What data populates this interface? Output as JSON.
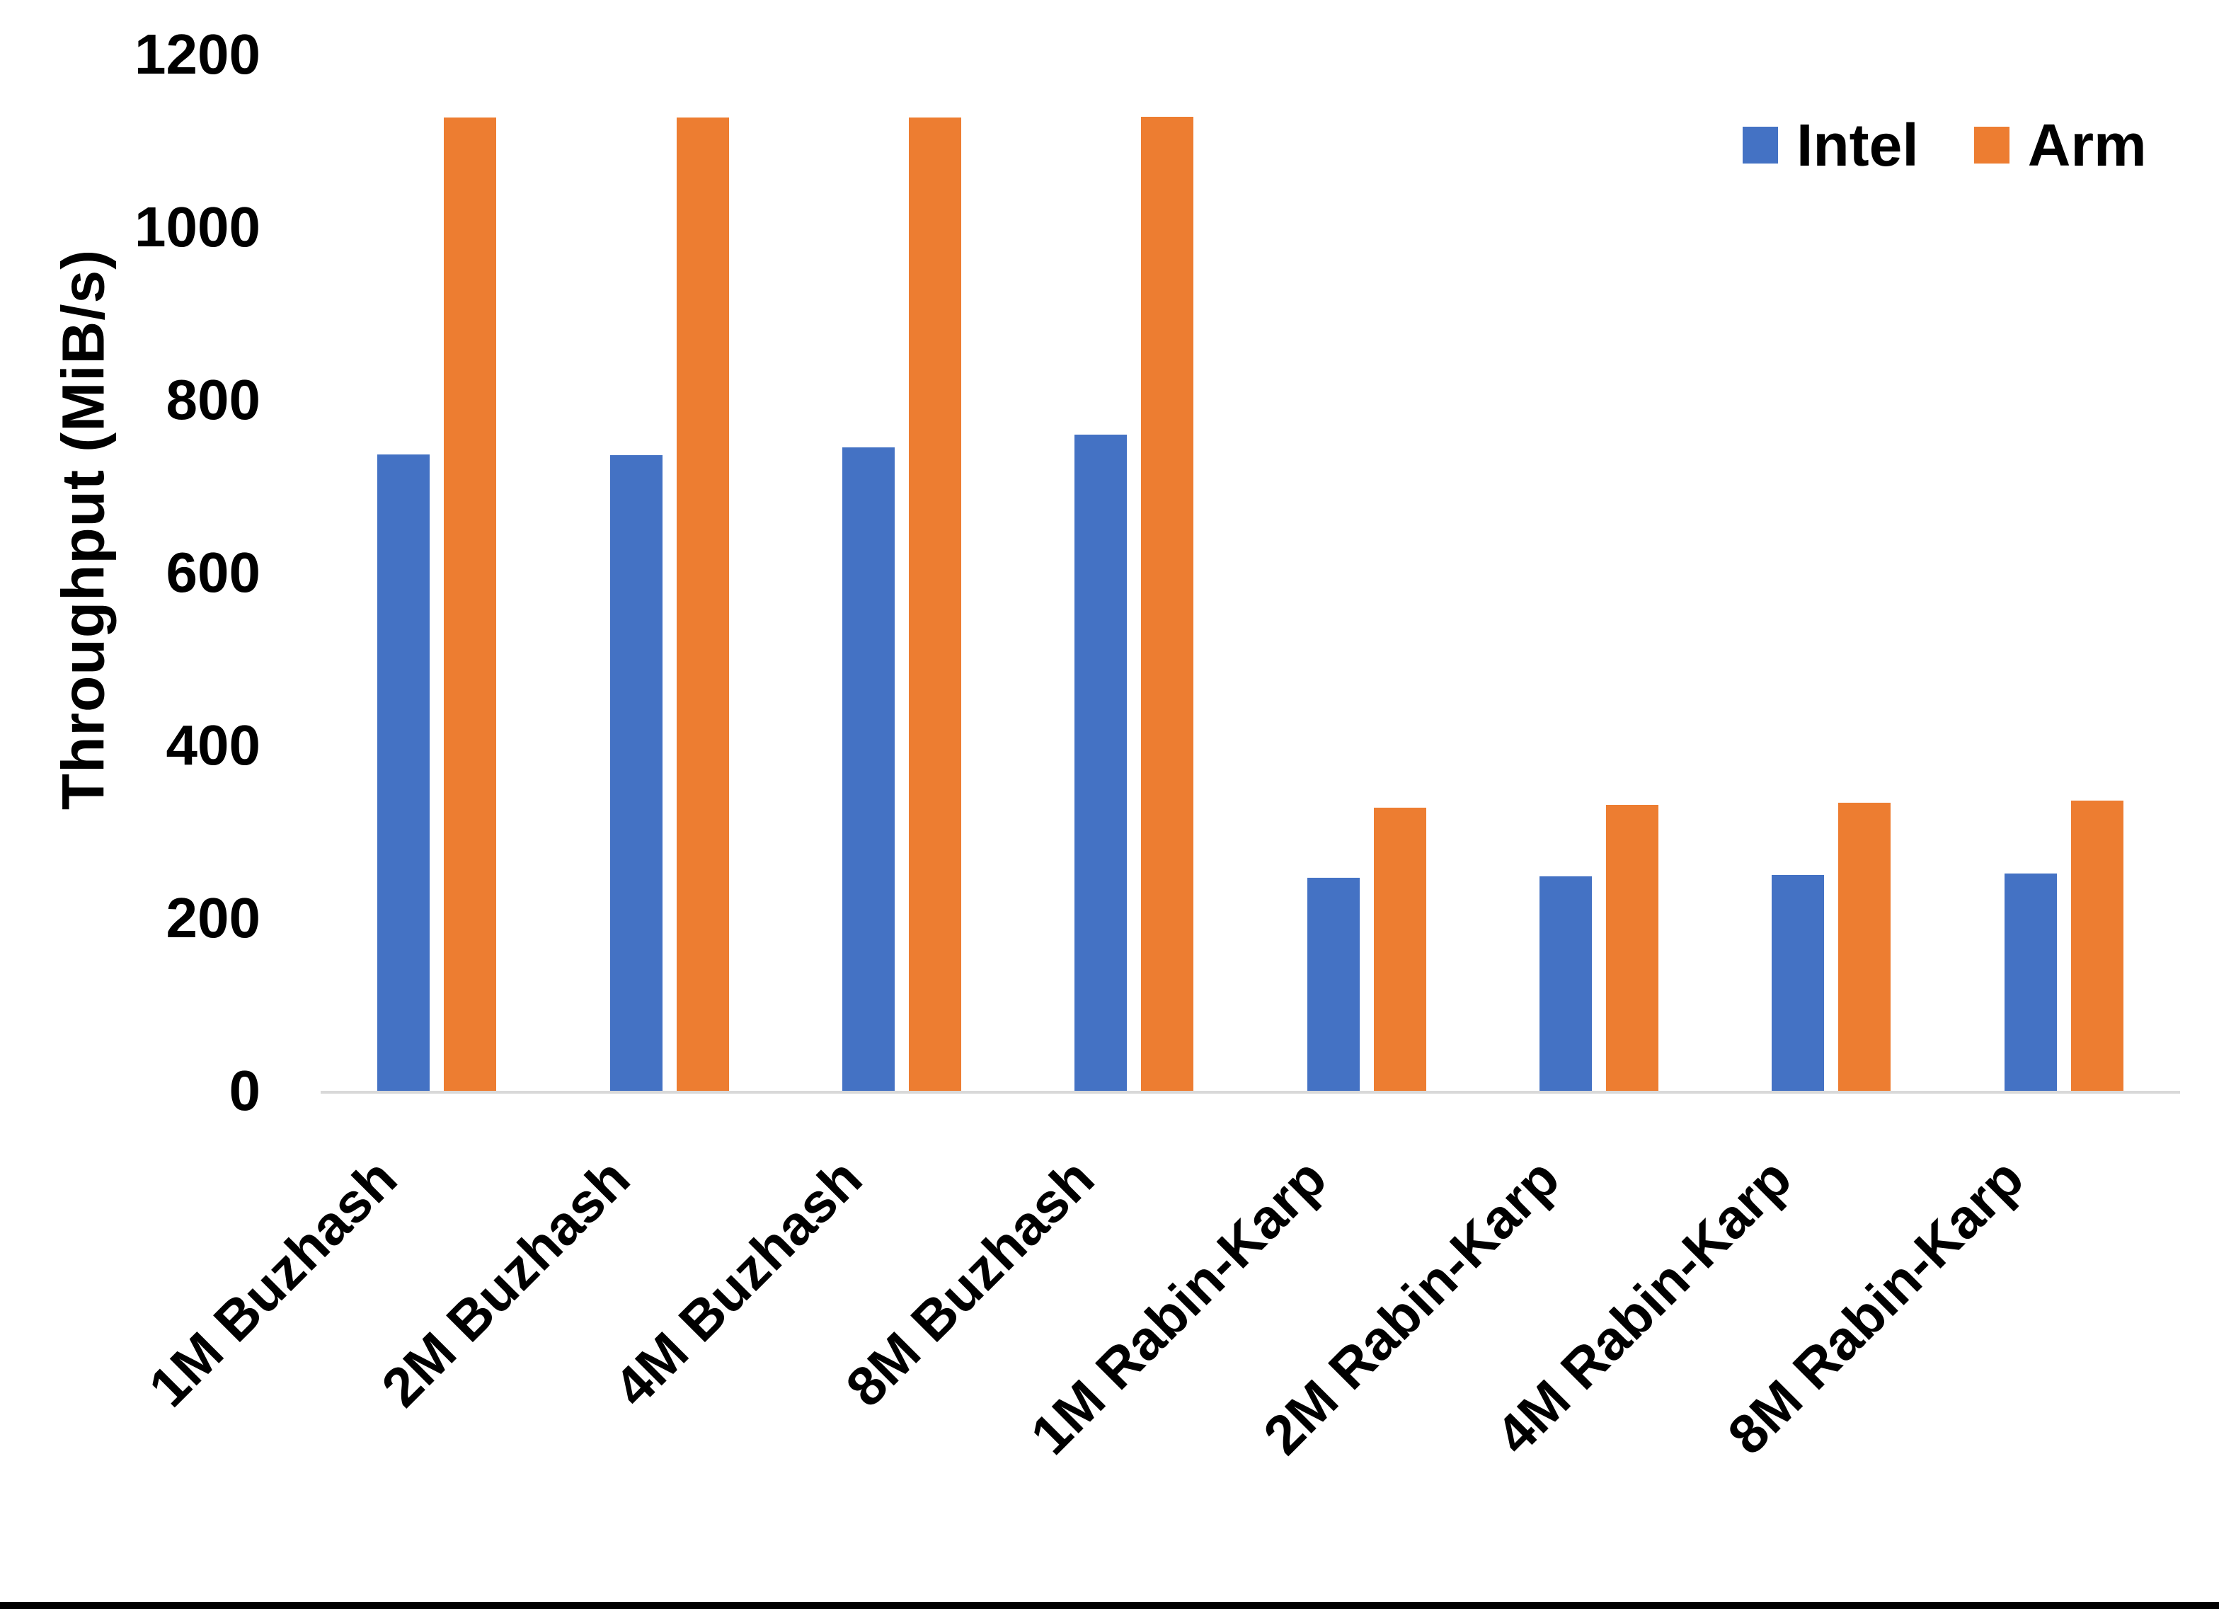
{
  "chart_data": {
    "type": "bar",
    "title": "",
    "ylabel": "Throughput (MiB/s)",
    "xlabel": "",
    "ylim": [
      0,
      1200
    ],
    "yticks": [
      0,
      200,
      400,
      600,
      800,
      1000,
      1200
    ],
    "grid": false,
    "legend_position": "top-right",
    "categories": [
      "1M Buzhash",
      "2M Buzhash",
      "4M Buzhash",
      "8M Buzhash",
      "1M Rabin-Karp",
      "2M Rabin-Karp",
      "4M Rabin-Karp",
      "8M Rabin-Karp"
    ],
    "series": [
      {
        "name": "Intel",
        "color": "#4472C4",
        "values": [
          737,
          736,
          745,
          760,
          247,
          248,
          250,
          252
        ]
      },
      {
        "name": "Arm",
        "color": "#ED7D31",
        "values": [
          1127,
          1127,
          1127,
          1128,
          328,
          331,
          334,
          336
        ]
      }
    ]
  },
  "colors": {
    "background": "#FFFFFF",
    "text": "#000000",
    "axis_line": "#D9D9D9",
    "bottom_border": "#000000"
  }
}
